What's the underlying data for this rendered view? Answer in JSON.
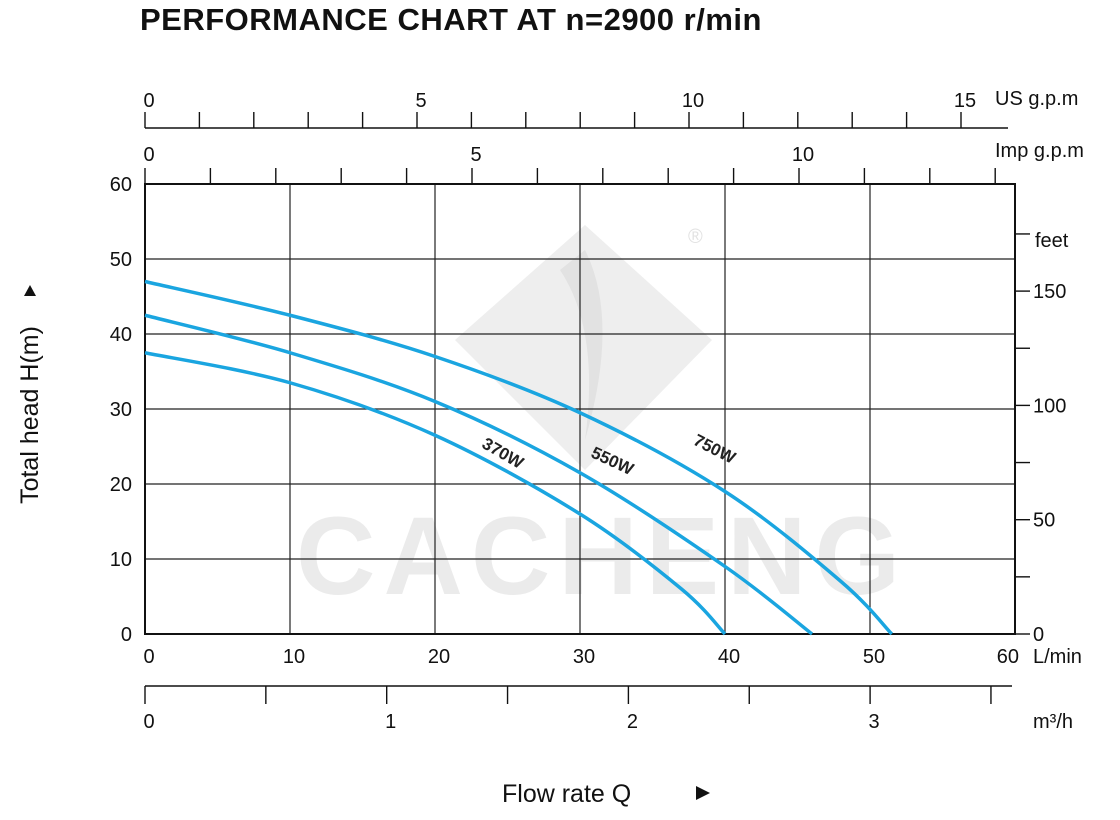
{
  "title": "PERFORMANCE CHART AT n=2900 r/min",
  "watermark": {
    "text": "CACHENG",
    "registered": "®"
  },
  "chart_data": {
    "type": "line",
    "x": [
      0,
      10,
      20,
      30,
      40,
      50,
      60
    ],
    "x_ticks": [
      "0",
      "10",
      "20",
      "30",
      "40",
      "50",
      "60"
    ],
    "xlim": [
      0,
      60
    ],
    "x_unit": "L/min",
    "ylim": [
      0,
      60
    ],
    "y_ticks": [
      "0",
      "10",
      "20",
      "30",
      "40",
      "50",
      "60"
    ],
    "ylabel": "Total  head H(m)",
    "xlabel": "Flow rate  Q",
    "grid": true,
    "series": [
      {
        "name": "370W",
        "color": "#1aa5e0",
        "points": [
          [
            0,
            37.5
          ],
          [
            10,
            33.5
          ],
          [
            20,
            26.5
          ],
          [
            30,
            16
          ],
          [
            37,
            6
          ],
          [
            40,
            0
          ]
        ]
      },
      {
        "name": "550W",
        "color": "#1aa5e0",
        "points": [
          [
            0,
            42.5
          ],
          [
            10,
            37.5
          ],
          [
            20,
            31
          ],
          [
            30,
            21.5
          ],
          [
            40,
            9
          ],
          [
            46,
            0
          ]
        ]
      },
      {
        "name": "750W",
        "color": "#1aa5e0",
        "points": [
          [
            0,
            47
          ],
          [
            10,
            42.5
          ],
          [
            20,
            37
          ],
          [
            30,
            29.5
          ],
          [
            40,
            19
          ],
          [
            48,
            7
          ],
          [
            51.5,
            0
          ]
        ]
      }
    ],
    "secondary_axes": {
      "us_gpm": {
        "unit": "US g.p.m",
        "ticks": [
          "0",
          "5",
          "10",
          "15"
        ]
      },
      "imp_gpm": {
        "unit": "Imp g.p.m",
        "ticks": [
          "0",
          "5",
          "10"
        ]
      },
      "feet": {
        "unit": "feet",
        "ticks": [
          "0",
          "50",
          "100",
          "150"
        ]
      },
      "m3h": {
        "unit": "m³/h",
        "ticks": [
          "0",
          "1",
          "2",
          "3"
        ]
      }
    }
  }
}
